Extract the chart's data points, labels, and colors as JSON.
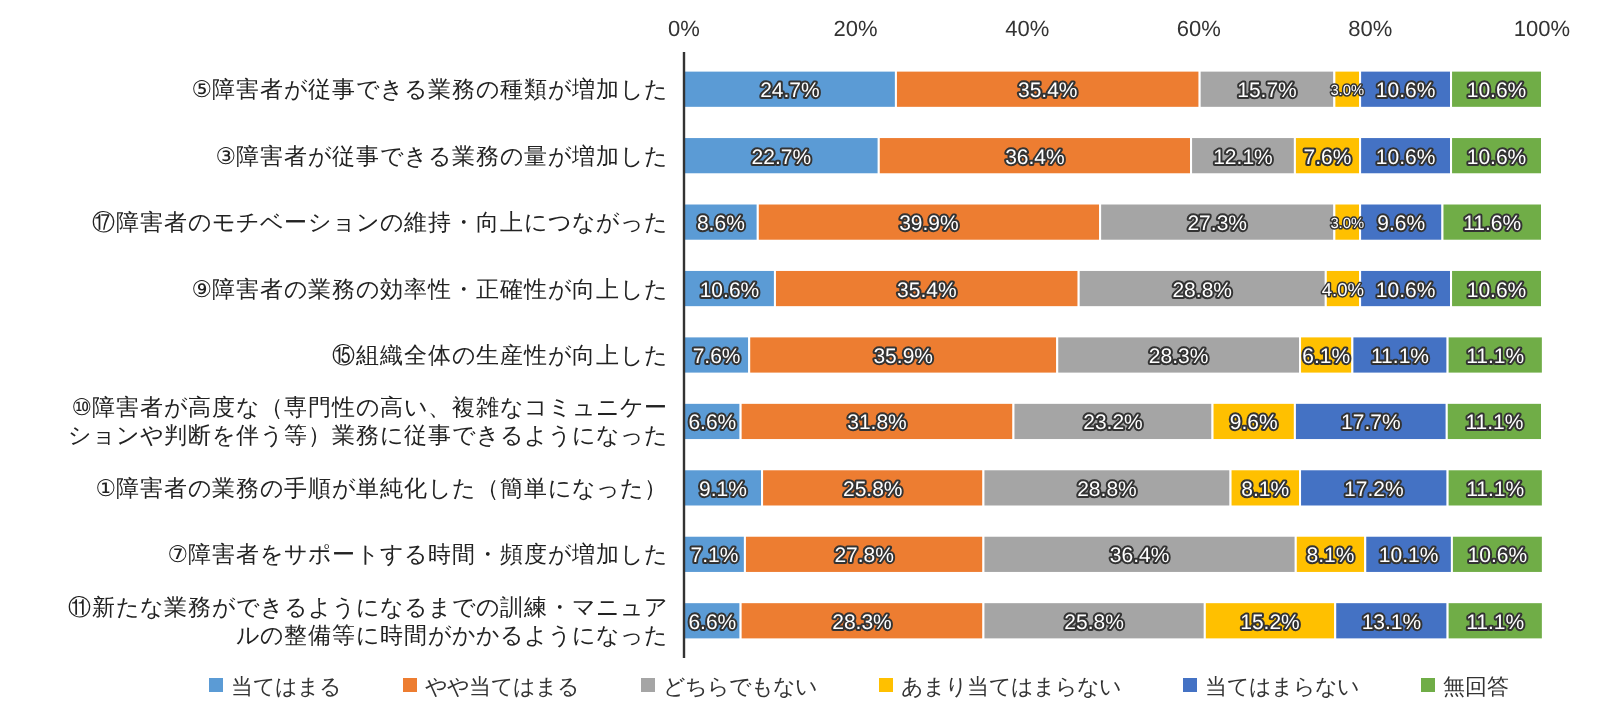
{
  "chart_data": {
    "type": "bar",
    "orientation": "horizontal",
    "stacked": true,
    "legend": "bottom",
    "xlim": [
      0,
      100
    ],
    "xticks": [
      {
        "value": 0,
        "label": "0%"
      },
      {
        "value": 20,
        "label": "20%"
      },
      {
        "value": 40,
        "label": "40%"
      },
      {
        "value": 60,
        "label": "60%"
      },
      {
        "value": 80,
        "label": "80%"
      },
      {
        "value": 100,
        "label": "100%"
      }
    ],
    "categories": [
      "⑤障害者が従事できる業務の種類が増加した",
      "③障害者が従事できる業務の量が増加した",
      "⑰障害者のモチベーションの維持・向上につながった",
      "⑨障害者の業務の効率性・正確性が向上した",
      "⑮組織全体の生産性が向上した",
      "⑩障害者が高度な（専門性の高い、複雑なコミュニケーションや判断を伴う等）業務に従事できるようになった",
      "①障害者の業務の手順が単純化した（簡単になった）",
      "⑦障害者をサポートする時間・頻度が増加した",
      "⑪新たな業務ができるようになるまでの訓練・マニュアルの整備等に時間がかかるようになった"
    ],
    "series": [
      {
        "name": "当てはまる",
        "color": "#5b9bd5",
        "values": [
          24.7,
          22.7,
          8.6,
          10.6,
          7.6,
          6.6,
          9.1,
          7.1,
          6.6
        ],
        "value_labels": [
          "24.7%",
          "22.7%",
          "8.6%",
          "10.6%",
          "7.6%",
          "6.6%",
          "9.1%",
          "7.1%",
          "6.6%"
        ]
      },
      {
        "name": "やや当てはまる",
        "color": "#ed7d31",
        "values": [
          35.4,
          36.4,
          39.9,
          35.4,
          35.9,
          31.8,
          25.8,
          27.8,
          28.3
        ],
        "value_labels": [
          "35.4%",
          "36.4%",
          "39.9%",
          "35.4%",
          "35.9%",
          "31.8%",
          "25.8%",
          "27.8%",
          "28.3%"
        ]
      },
      {
        "name": "どちらでもない",
        "color": "#a5a5a5",
        "values": [
          15.7,
          12.1,
          27.3,
          28.8,
          28.3,
          23.2,
          28.8,
          36.4,
          25.8
        ],
        "value_labels": [
          "15.7%",
          "12.1%",
          "27.3%",
          "28.8%",
          "28.3%",
          "23.2%",
          "28.8%",
          "36.4%",
          "25.8%"
        ]
      },
      {
        "name": "あまり当てはまらない",
        "color": "#ffc000",
        "values": [
          3.0,
          7.6,
          3.0,
          4.0,
          6.1,
          9.6,
          8.1,
          8.1,
          15.2
        ],
        "value_labels": [
          "3.0%",
          "7.6%",
          "3.0%",
          "4.0%",
          "6.1%",
          "9.6%",
          "8.1%",
          "8.1%",
          "15.2%"
        ]
      },
      {
        "name": "当てはまらない",
        "color": "#4472c4",
        "values": [
          10.6,
          10.6,
          9.6,
          10.6,
          11.1,
          17.7,
          17.2,
          10.1,
          13.1
        ],
        "value_labels": [
          "10.6%",
          "10.6%",
          "9.6%",
          "10.6%",
          "11.1%",
          "17.7%",
          "17.2%",
          "10.1%",
          "13.1%"
        ]
      },
      {
        "name": "無回答",
        "color": "#70ad47",
        "values": [
          10.6,
          10.6,
          11.6,
          10.6,
          11.1,
          11.1,
          11.1,
          10.6,
          11.1
        ],
        "value_labels": [
          "10.6%",
          "10.6%",
          "11.6%",
          "10.6%",
          "11.1%",
          "11.1%",
          "11.1%",
          "10.6%",
          "11.1%"
        ]
      }
    ]
  }
}
